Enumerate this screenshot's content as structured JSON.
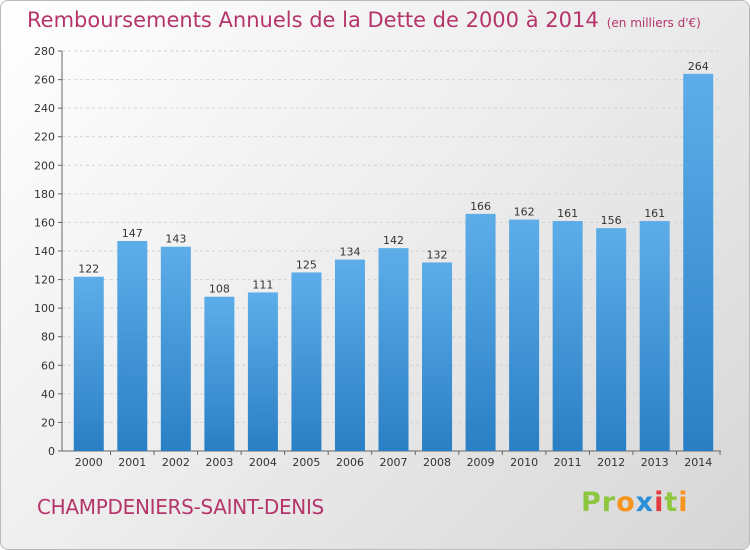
{
  "title": "Remboursements Annuels de la Dette de 2000 à 2014",
  "unit": "(en milliers d'€)",
  "city": "CHAMPDENIERS-SAINT-DENIS",
  "logo": {
    "p1": "Pr",
    "p2": "o",
    "p3": "x",
    "p4": "i",
    "p5": "t",
    "p6": "i"
  },
  "colors": {
    "bar_light": "#5dade9",
    "bar_dark": "#2a7fc4",
    "title": "#b5356b"
  },
  "chart_data": {
    "type": "bar",
    "title": "Remboursements Annuels de la Dette de 2000 à 2014",
    "categories": [
      "2000",
      "2001",
      "2002",
      "2003",
      "2004",
      "2005",
      "2006",
      "2007",
      "2008",
      "2009",
      "2010",
      "2011",
      "2012",
      "2013",
      "2014"
    ],
    "values": [
      122,
      147,
      143,
      108,
      111,
      125,
      134,
      142,
      132,
      166,
      162,
      161,
      156,
      161,
      264
    ],
    "ylim": [
      0,
      280
    ],
    "yticks": [
      0,
      20,
      40,
      60,
      80,
      100,
      120,
      140,
      160,
      180,
      200,
      220,
      240,
      260,
      280
    ],
    "grid": true
  }
}
